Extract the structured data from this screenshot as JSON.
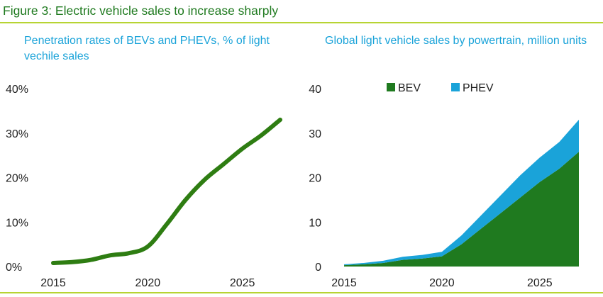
{
  "figure_title": "Figure 3: Electric vehicle sales to increase sharply",
  "colors": {
    "accent_green": "#1f7a1f",
    "rule": "#b7d433",
    "title_blue": "#1aa3d9",
    "bev": "#1f7a1f",
    "phev": "#1aa3d9"
  },
  "chart_data": [
    {
      "type": "line",
      "title": "Penetration rates of BEVs and PHEVs, % of light vechile sales",
      "ylim": [
        0,
        40
      ],
      "yticks": [
        0,
        10,
        20,
        30,
        40
      ],
      "ytick_labels": [
        "0%",
        "10%",
        "20%",
        "30%",
        "40%"
      ],
      "xticks": [
        2015,
        2020,
        2025
      ],
      "xtick_labels": [
        "2015",
        "2020",
        "2025"
      ],
      "xlim": [
        2015,
        2027
      ],
      "series": [
        {
          "color": "#2e7d12",
          "x": [
            2015,
            2016,
            2017,
            2018,
            2019,
            2020,
            2021,
            2022,
            2023,
            2024,
            2025,
            2026,
            2027
          ],
          "values": [
            0.8,
            1.0,
            1.5,
            2.5,
            3.0,
            4.5,
            9.5,
            15.0,
            19.5,
            23.0,
            26.5,
            29.5,
            33.0
          ]
        }
      ]
    },
    {
      "type": "area",
      "title": "Global light vehicle sales by powertrain, million units",
      "ylim": [
        0,
        40
      ],
      "yticks": [
        0,
        10,
        20,
        30,
        40
      ],
      "ytick_labels": [
        "0",
        "10",
        "20",
        "30",
        "40"
      ],
      "xticks": [
        2015,
        2020,
        2025
      ],
      "xtick_labels": [
        "2015",
        "2020",
        "2025"
      ],
      "xlim": [
        2015,
        2027
      ],
      "stacked": true,
      "legend_position": "top",
      "x": [
        2015,
        2016,
        2017,
        2018,
        2019,
        2020,
        2021,
        2022,
        2023,
        2024,
        2025,
        2026,
        2027
      ],
      "series": [
        {
          "name": "BEV",
          "color": "#1f7a1f",
          "values": [
            0.3,
            0.5,
            0.8,
            1.5,
            1.8,
            2.3,
            5.0,
            8.5,
            12.0,
            15.5,
            19.0,
            22.0,
            25.8
          ]
        },
        {
          "name": "PHEV",
          "color": "#1aa3d9",
          "values": [
            0.2,
            0.3,
            0.5,
            0.7,
            0.8,
            1.0,
            2.0,
            3.0,
            4.0,
            5.0,
            5.5,
            6.0,
            7.2
          ]
        }
      ]
    }
  ]
}
